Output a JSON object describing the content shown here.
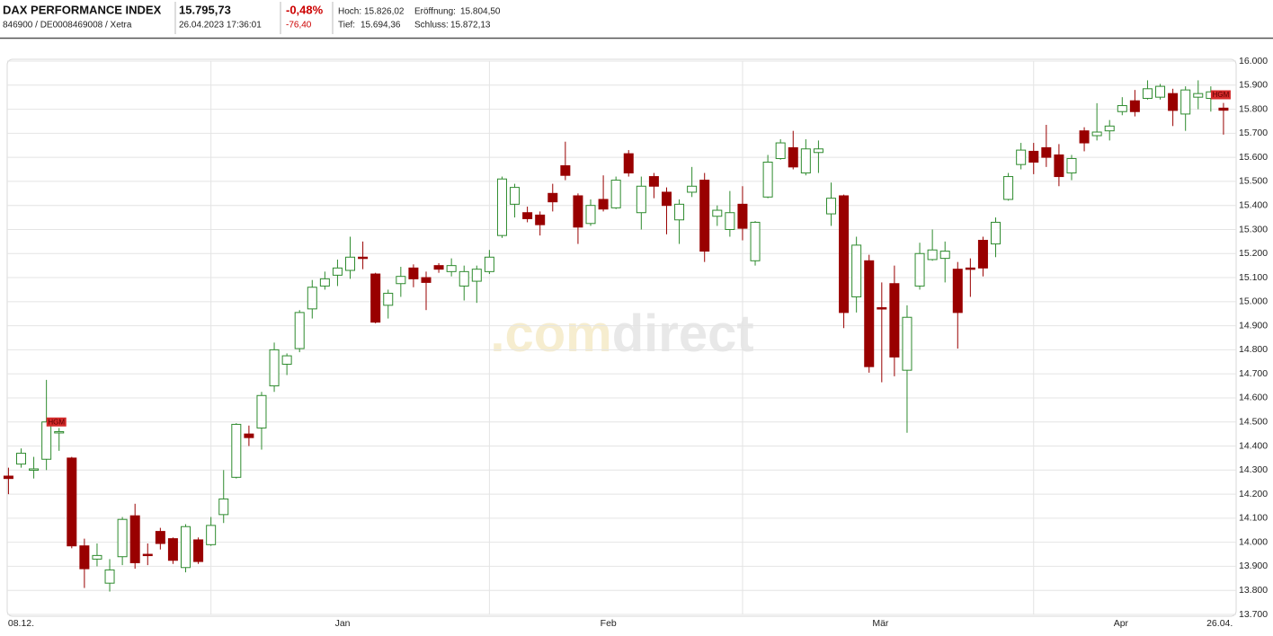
{
  "header": {
    "name": "DAX PERFORMANCE INDEX",
    "ids": "846900 / DE0008469008 / Xetra",
    "price": "15.795,73",
    "timestamp": "26.04.2023 17:36:01",
    "change_pct": "-0,48%",
    "change_abs": "-76,40",
    "high_label": "Hoch:",
    "high": "15.826,02",
    "open_label": "Eröffnung:",
    "open": "15.804,50",
    "low_label": "Tief:",
    "low": "15.694,36",
    "close_label": "Schluss:",
    "close": "15.872,13"
  },
  "watermark": [
    ".com",
    "direct"
  ],
  "chart_data": {
    "type": "candlestick",
    "up_color": "#2e8b2e",
    "down_color": "#990000",
    "grid": true,
    "categories": [
      null,
      null,
      null,
      null,
      null,
      null,
      null,
      null,
      null,
      null,
      null,
      null,
      null,
      null,
      null,
      null,
      null,
      null,
      null,
      null,
      null,
      null,
      null,
      null,
      null,
      null,
      null,
      null,
      null,
      null,
      null,
      null,
      null,
      null,
      null,
      null,
      null,
      null,
      null,
      null,
      null,
      null,
      null,
      null,
      null,
      null,
      null,
      null,
      null,
      null,
      null,
      null,
      null,
      null,
      null,
      null,
      null,
      null,
      null,
      null,
      null,
      null,
      null,
      null,
      null,
      null,
      null,
      null,
      null,
      null,
      null,
      null,
      null,
      null,
      null,
      null,
      null,
      null,
      null,
      null,
      null,
      null,
      null,
      null,
      null,
      null,
      null,
      null,
      null,
      null,
      null,
      null,
      null,
      null,
      null,
      null,
      null
    ],
    "open": [
      14275,
      14325,
      14300,
      14345,
      14455,
      14350,
      13985,
      13930,
      13830,
      13940,
      14110,
      13950,
      14045,
      14015,
      13895,
      14010,
      13990,
      14115,
      14270,
      14450,
      14475,
      14650,
      14740,
      14805,
      14970,
      15065,
      15110,
      15130,
      15185,
      15115,
      14985,
      15075,
      15140,
      15100,
      15150,
      15125,
      15065,
      15085,
      15125,
      15275,
      15405,
      15370,
      15360,
      15450,
      15565,
      15440,
      15325,
      15425,
      15390,
      15615,
      15370,
      15520,
      15455,
      15340,
      15455,
      15505,
      15355,
      15300,
      15405,
      15170,
      15435,
      15595,
      15640,
      15535,
      15620,
      15365,
      15440,
      15020,
      15170,
      14975,
      15075,
      14715,
      15065,
      15175,
      15180,
      15135,
      15140,
      15255,
      15240,
      15425,
      15570,
      15625,
      15640,
      15610,
      15535,
      15710,
      15690,
      15710,
      15790,
      15835,
      15845,
      15850,
      15865,
      15780,
      15850,
      15845,
      15804.5
    ],
    "high": [
      14310,
      14390,
      14355,
      14675,
      14475,
      14355,
      14015,
      13995,
      13930,
      14105,
      14160,
      13995,
      14060,
      14020,
      14075,
      14020,
      14105,
      14300,
      14495,
      14485,
      14625,
      14830,
      14785,
      14965,
      15090,
      15125,
      15175,
      15270,
      15250,
      15120,
      15050,
      15145,
      15155,
      15125,
      15160,
      15180,
      15150,
      15150,
      15215,
      15520,
      15490,
      15395,
      15375,
      15490,
      15665,
      15450,
      15425,
      15525,
      15520,
      15630,
      15520,
      15535,
      15475,
      15425,
      15560,
      15535,
      15400,
      15460,
      15480,
      15335,
      15610,
      15675,
      15710,
      15675,
      15670,
      15495,
      15445,
      15270,
      15195,
      15080,
      15150,
      14985,
      15245,
      15300,
      15250,
      15165,
      15180,
      15270,
      15350,
      15535,
      15660,
      15660,
      15735,
      15655,
      15610,
      15725,
      15825,
      15755,
      15850,
      15880,
      15920,
      15905,
      15885,
      15895,
      15920,
      15895,
      15826.02
    ],
    "low": [
      14200,
      14310,
      14265,
      14300,
      14380,
      13975,
      13810,
      13900,
      13795,
      13905,
      13890,
      13905,
      13970,
      13910,
      13875,
      13910,
      13985,
      14080,
      14265,
      14400,
      14385,
      14625,
      14695,
      14790,
      14930,
      15050,
      15065,
      15095,
      15135,
      14910,
      14930,
      15020,
      15060,
      14965,
      15120,
      15105,
      15005,
      14995,
      15115,
      15265,
      15350,
      15330,
      15275,
      15375,
      15505,
      15240,
      15315,
      15375,
      15385,
      15520,
      15300,
      15430,
      15280,
      15240,
      15435,
      15165,
      15315,
      15270,
      15255,
      15150,
      15430,
      15590,
      15550,
      15525,
      15535,
      15315,
      14890,
      14955,
      14705,
      14665,
      14690,
      14455,
      15050,
      15170,
      15080,
      14805,
      15020,
      15105,
      15185,
      15420,
      15550,
      15530,
      15560,
      15480,
      15505,
      15625,
      15670,
      15670,
      15775,
      15770,
      15840,
      15840,
      15730,
      15710,
      15800,
      15790,
      15694.36
    ],
    "close": [
      14265,
      14370,
      14305,
      14500,
      14460,
      13985,
      13890,
      13945,
      13885,
      14095,
      13915,
      13945,
      13995,
      13925,
      14065,
      13920,
      14070,
      14180,
      14490,
      14435,
      14610,
      14800,
      14775,
      14955,
      15060,
      15095,
      15140,
      15185,
      15180,
      14915,
      15035,
      15105,
      15095,
      15080,
      15135,
      15150,
      15125,
      15135,
      15185,
      15510,
      15475,
      15345,
      15320,
      15415,
      15525,
      15310,
      15400,
      15385,
      15505,
      15535,
      15480,
      15480,
      15400,
      15405,
      15480,
      15210,
      15380,
      15370,
      15305,
      15330,
      15580,
      15660,
      15560,
      15635,
      15635,
      15430,
      14955,
      15235,
      14730,
      14970,
      14770,
      14935,
      15200,
      15215,
      15210,
      14955,
      15135,
      15140,
      15330,
      15520,
      15630,
      15580,
      15600,
      15520,
      15595,
      15660,
      15705,
      15730,
      15815,
      15790,
      15885,
      15895,
      15795,
      15880,
      15865,
      15872.13,
      15795.73
    ],
    "xlim": [
      -0.1,
      97
    ],
    "xticks": [
      {
        "value": 1,
        "label": "08.12."
      },
      {
        "value": 26.4,
        "label": "Jan"
      },
      {
        "value": 47.4,
        "label": "Feb"
      },
      {
        "value": 68.9,
        "label": "Mär"
      },
      {
        "value": 87.9,
        "label": "Apr"
      },
      {
        "value": 95.7,
        "label": "26.04."
      }
    ],
    "xgrid": [
      16,
      38,
      58,
      81
    ],
    "ylim": [
      13700,
      16000
    ],
    "yticks": [
      {
        "value": 13700,
        "label": "13.700"
      },
      {
        "value": 13800,
        "label": "13.800"
      },
      {
        "value": 13900,
        "label": "13.900"
      },
      {
        "value": 14000,
        "label": "14.000"
      },
      {
        "value": 14100,
        "label": "14.100"
      },
      {
        "value": 14200,
        "label": "14.200"
      },
      {
        "value": 14300,
        "label": "14.300"
      },
      {
        "value": 14400,
        "label": "14.400"
      },
      {
        "value": 14500,
        "label": "14.500"
      },
      {
        "value": 14600,
        "label": "14.600"
      },
      {
        "value": 14700,
        "label": "14.700"
      },
      {
        "value": 14800,
        "label": "14.800"
      },
      {
        "value": 14900,
        "label": "14.900"
      },
      {
        "value": 15000,
        "label": "15.000"
      },
      {
        "value": 15100,
        "label": "15.100"
      },
      {
        "value": 15200,
        "label": "15.200"
      },
      {
        "value": 15300,
        "label": "15.300"
      },
      {
        "value": 15400,
        "label": "15.400"
      },
      {
        "value": 15500,
        "label": "15.500"
      },
      {
        "value": 15600,
        "label": "15.600"
      },
      {
        "value": 15700,
        "label": "15.700"
      },
      {
        "value": 15800,
        "label": "15.800"
      },
      {
        "value": 15900,
        "label": "15.900"
      },
      {
        "value": 16000,
        "label": "16.000"
      }
    ],
    "annotations": [
      {
        "text": "HGM",
        "x": 4,
        "y": 14500
      },
      {
        "text": "HGM",
        "x": 96,
        "y": 15860
      }
    ]
  }
}
